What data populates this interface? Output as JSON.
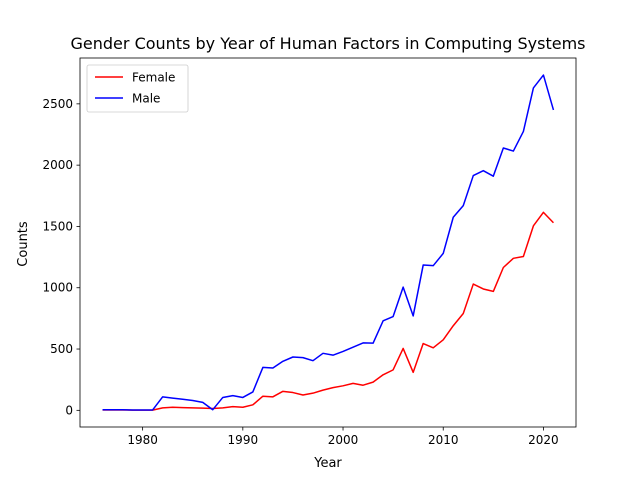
{
  "chart_data": {
    "type": "line",
    "title": "Gender Counts by Year of Human Factors in Computing Systems",
    "xlabel": "Year",
    "ylabel": "Counts",
    "xlim": [
      1973.75,
      2023.25
    ],
    "ylim": [
      -136,
      2874
    ],
    "xticks": [
      1980,
      1990,
      2000,
      2010,
      2020
    ],
    "yticks": [
      0,
      500,
      1000,
      1500,
      2000,
      2500
    ],
    "grid": false,
    "legend_position": "top-left",
    "x": [
      1976,
      1977,
      1978,
      1979,
      1980,
      1981,
      1982,
      1983,
      1984,
      1985,
      1986,
      1987,
      1988,
      1989,
      1990,
      1991,
      1992,
      1993,
      1994,
      1995,
      1996,
      1997,
      1998,
      1999,
      2000,
      2001,
      2002,
      2003,
      2004,
      2005,
      2006,
      2007,
      2008,
      2009,
      2010,
      2011,
      2012,
      2013,
      2014,
      2015,
      2016,
      2017,
      2018,
      2019,
      2020,
      2021
    ],
    "series": [
      {
        "name": "Female",
        "color": "#ff0000",
        "values": [
          3,
          3,
          3,
          2,
          2,
          2,
          20,
          25,
          22,
          20,
          18,
          15,
          20,
          30,
          25,
          45,
          115,
          110,
          155,
          145,
          125,
          140,
          165,
          185,
          200,
          220,
          205,
          230,
          290,
          330,
          505,
          310,
          545,
          510,
          575,
          690,
          790,
          1030,
          990,
          970,
          1165,
          1240,
          1255,
          1505,
          1615,
          1530
        ]
      },
      {
        "name": "Male",
        "color": "#0000ff",
        "values": [
          5,
          5,
          5,
          3,
          3,
          3,
          110,
          100,
          90,
          80,
          65,
          5,
          105,
          120,
          105,
          150,
          350,
          345,
          400,
          435,
          430,
          405,
          465,
          450,
          480,
          515,
          550,
          548,
          730,
          765,
          1005,
          770,
          1185,
          1180,
          1280,
          1575,
          1670,
          1915,
          1955,
          1910,
          2140,
          2115,
          2275,
          2630,
          2735,
          2450
        ]
      }
    ]
  }
}
